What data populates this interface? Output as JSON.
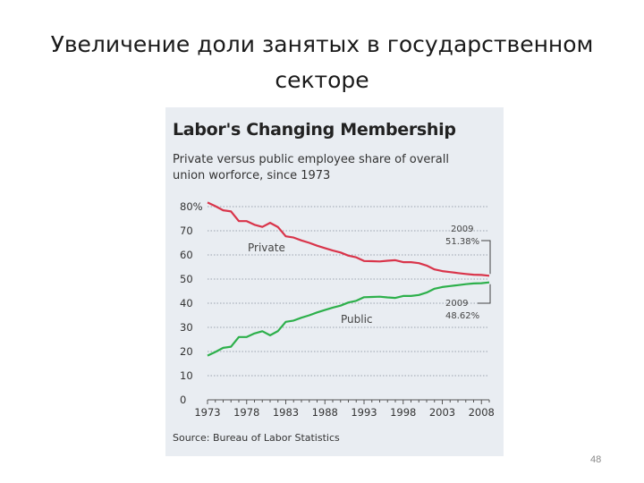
{
  "slide": {
    "title_line1": "Увеличение доли занятых в государственном",
    "title_line2": "секторе",
    "page_number": "48"
  },
  "chart_data": {
    "type": "line",
    "title": "Labor's Changing Membership",
    "subtitle_line1": "Private versus public employee share of overall",
    "subtitle_line2": "union worforce, since 1973",
    "source": "Source: Bureau of Labor Statistics",
    "xlim": [
      1973,
      2009
    ],
    "ylim": [
      0,
      80
    ],
    "y_ticks": [
      0,
      10,
      20,
      30,
      40,
      50,
      60,
      70,
      80
    ],
    "y_tick_labels": [
      "0",
      "10",
      "20",
      "30",
      "40",
      "50",
      "60",
      "70",
      "80%"
    ],
    "x_ticks": [
      1973,
      1978,
      1983,
      1988,
      1993,
      1998,
      2003,
      2008
    ],
    "x_tick_labels": [
      "1973",
      "1978",
      "1983",
      "1988",
      "1993",
      "1998",
      "2003",
      "2008"
    ],
    "grid": true,
    "series": [
      {
        "name": "Private",
        "color": "#d9344a",
        "x": [
          1973,
          1974,
          1975,
          1976,
          1977,
          1978,
          1979,
          1980,
          1981,
          1982,
          1983,
          1984,
          1985,
          1986,
          1987,
          1988,
          1989,
          1990,
          1991,
          1992,
          1993,
          1994,
          1995,
          1996,
          1997,
          1998,
          1999,
          2000,
          2001,
          2002,
          2003,
          2004,
          2005,
          2006,
          2007,
          2008,
          2009
        ],
        "values": [
          81.7,
          80.2,
          78.5,
          78.0,
          74.0,
          74.0,
          72.5,
          71.6,
          73.3,
          71.5,
          67.7,
          67.2,
          66.0,
          65.0,
          63.8,
          62.8,
          61.8,
          61.0,
          59.7,
          59.0,
          57.5,
          57.4,
          57.3,
          57.6,
          57.8,
          57.0,
          57.0,
          56.6,
          55.6,
          54.0,
          53.3,
          52.9,
          52.5,
          52.1,
          51.8,
          51.7,
          51.38
        ]
      },
      {
        "name": "Public",
        "color": "#2db04b",
        "x": [
          1973,
          1974,
          1975,
          1976,
          1977,
          1978,
          1979,
          1980,
          1981,
          1982,
          1983,
          1984,
          1985,
          1986,
          1987,
          1988,
          1989,
          1990,
          1991,
          1992,
          1993,
          1994,
          1995,
          1996,
          1997,
          1998,
          1999,
          2000,
          2001,
          2002,
          2003,
          2004,
          2005,
          2006,
          2007,
          2008,
          2009
        ],
        "values": [
          18.3,
          19.8,
          21.5,
          22.0,
          26.0,
          26.0,
          27.5,
          28.4,
          26.7,
          28.5,
          32.3,
          32.8,
          34.0,
          35.0,
          36.2,
          37.2,
          38.2,
          39.0,
          40.3,
          41.0,
          42.5,
          42.6,
          42.7,
          42.4,
          42.2,
          43.0,
          43.0,
          43.4,
          44.4,
          46.0,
          46.7,
          47.1,
          47.5,
          47.9,
          48.2,
          48.3,
          48.62
        ]
      }
    ],
    "annotations": {
      "private_label": "Private",
      "public_label": "Public",
      "end_private_year": "2009",
      "end_private_value": "51.38%",
      "end_public_year": "2009",
      "end_public_value": "48.62%"
    }
  }
}
